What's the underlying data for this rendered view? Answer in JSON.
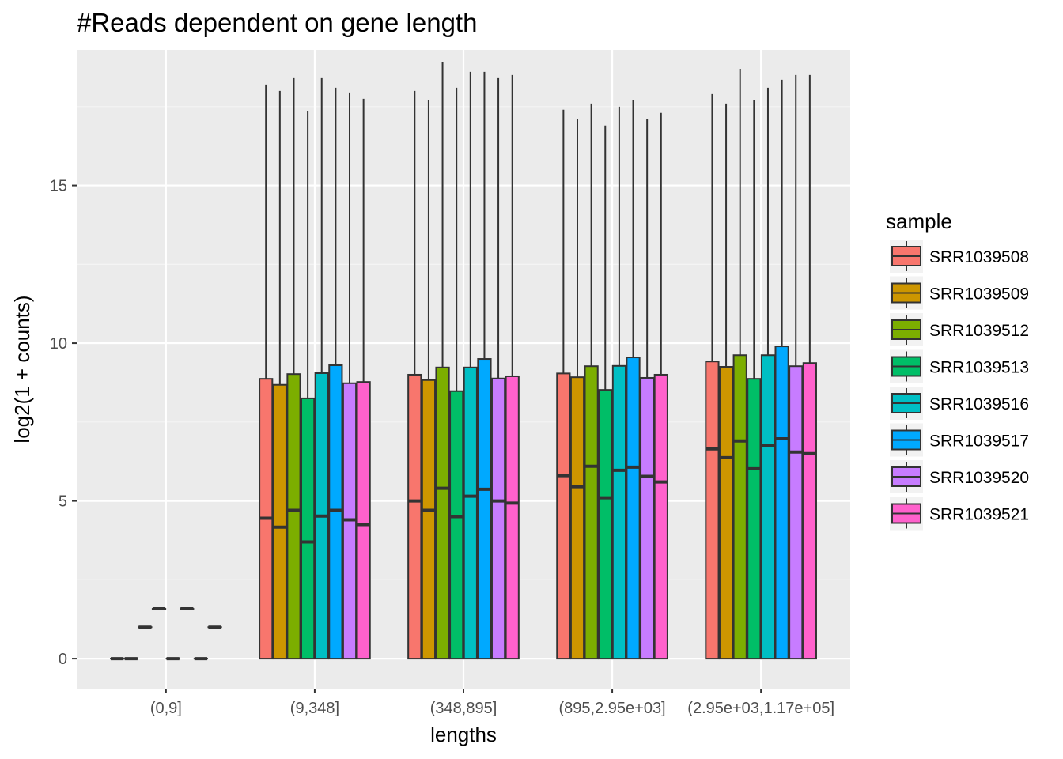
{
  "chart_data": {
    "type": "boxplot",
    "title": "#Reads dependent on gene length",
    "xlabel": "lengths",
    "ylabel": "log2(1 + counts)",
    "ylim": [
      -0.95,
      19.3
    ],
    "yticks": [
      0,
      5,
      10,
      15
    ],
    "grid": true,
    "legend": {
      "title": "sample",
      "position": "right"
    },
    "categories": [
      "(0,9]",
      "(9,348]",
      "(348,895]",
      "(895,2.95e+03]",
      "(2.95e+03,1.17e+05]"
    ],
    "series": [
      {
        "name": "SRR1039508",
        "color": "#F8766D",
        "boxes": [
          {
            "min": 0,
            "q1": 0,
            "median": 0,
            "q3": 0,
            "max": 0
          },
          {
            "min": 0,
            "q1": 0,
            "median": 4.45,
            "q3": 8.87,
            "max": 18.2
          },
          {
            "min": 0,
            "q1": 0,
            "median": 5.0,
            "q3": 9.0,
            "max": 18.0
          },
          {
            "min": 0,
            "q1": 0,
            "median": 5.8,
            "q3": 9.04,
            "max": 17.4
          },
          {
            "min": 0,
            "q1": 0,
            "median": 6.65,
            "q3": 9.42,
            "max": 17.9
          }
        ]
      },
      {
        "name": "SRR1039509",
        "color": "#CD9600",
        "boxes": [
          {
            "min": 0,
            "q1": 0,
            "median": 0,
            "q3": 0,
            "max": 0
          },
          {
            "min": 0,
            "q1": 0,
            "median": 4.17,
            "q3": 8.68,
            "max": 18.0
          },
          {
            "min": 0,
            "q1": 0,
            "median": 4.7,
            "q3": 8.83,
            "max": 17.7
          },
          {
            "min": 0,
            "q1": 0,
            "median": 5.45,
            "q3": 8.92,
            "max": 17.1
          },
          {
            "min": 0,
            "q1": 0,
            "median": 6.37,
            "q3": 9.25,
            "max": 17.6
          }
        ]
      },
      {
        "name": "SRR1039512",
        "color": "#7CAE00",
        "boxes": [
          {
            "min": 1,
            "q1": 1,
            "median": 1,
            "q3": 1,
            "max": 1
          },
          {
            "min": 0,
            "q1": 0,
            "median": 4.7,
            "q3": 9.02,
            "max": 18.4
          },
          {
            "min": 0,
            "q1": 0,
            "median": 5.4,
            "q3": 9.23,
            "max": 18.9
          },
          {
            "min": 0,
            "q1": 0,
            "median": 6.1,
            "q3": 9.27,
            "max": 17.6
          },
          {
            "min": 0,
            "q1": 0,
            "median": 6.9,
            "q3": 9.62,
            "max": 18.7
          }
        ]
      },
      {
        "name": "SRR1039513",
        "color": "#00BE67",
        "boxes": [
          {
            "min": 1.58,
            "q1": 1.58,
            "median": 1.58,
            "q3": 1.58,
            "max": 1.58
          },
          {
            "min": 0,
            "q1": 0,
            "median": 3.7,
            "q3": 8.25,
            "max": 17.35
          },
          {
            "min": 0,
            "q1": 0,
            "median": 4.5,
            "q3": 8.48,
            "max": 18.1
          },
          {
            "min": 0,
            "q1": 0,
            "median": 5.1,
            "q3": 8.52,
            "max": 16.9
          },
          {
            "min": 0,
            "q1": 0,
            "median": 6.02,
            "q3": 8.87,
            "max": 17.7
          }
        ]
      },
      {
        "name": "SRR1039516",
        "color": "#00BFC4",
        "boxes": [
          {
            "min": 0,
            "q1": 0,
            "median": 0,
            "q3": 0,
            "max": 0
          },
          {
            "min": 0,
            "q1": 0,
            "median": 4.52,
            "q3": 9.05,
            "max": 18.4
          },
          {
            "min": 0,
            "q1": 0,
            "median": 5.15,
            "q3": 9.23,
            "max": 18.6
          },
          {
            "min": 0,
            "q1": 0,
            "median": 5.97,
            "q3": 9.28,
            "max": 17.5
          },
          {
            "min": 0,
            "q1": 0,
            "median": 6.75,
            "q3": 9.62,
            "max": 18.1
          }
        ]
      },
      {
        "name": "SRR1039517",
        "color": "#00A9FF",
        "boxes": [
          {
            "min": 1.58,
            "q1": 1.58,
            "median": 1.58,
            "q3": 1.58,
            "max": 1.58
          },
          {
            "min": 0,
            "q1": 0,
            "median": 4.7,
            "q3": 9.3,
            "max": 18.1
          },
          {
            "min": 0,
            "q1": 0,
            "median": 5.37,
            "q3": 9.5,
            "max": 18.6
          },
          {
            "min": 0,
            "q1": 0,
            "median": 6.07,
            "q3": 9.55,
            "max": 17.7
          },
          {
            "min": 0,
            "q1": 0,
            "median": 6.97,
            "q3": 9.9,
            "max": 18.35
          }
        ]
      },
      {
        "name": "SRR1039520",
        "color": "#C77CFF",
        "boxes": [
          {
            "min": 0,
            "q1": 0,
            "median": 0,
            "q3": 0,
            "max": 0
          },
          {
            "min": 0,
            "q1": 0,
            "median": 4.4,
            "q3": 8.73,
            "max": 17.95
          },
          {
            "min": 0,
            "q1": 0,
            "median": 5.0,
            "q3": 8.88,
            "max": 18.4
          },
          {
            "min": 0,
            "q1": 0,
            "median": 5.78,
            "q3": 8.9,
            "max": 17.1
          },
          {
            "min": 0,
            "q1": 0,
            "median": 6.55,
            "q3": 9.27,
            "max": 18.5
          }
        ]
      },
      {
        "name": "SRR1039521",
        "color": "#FF61CC",
        "boxes": [
          {
            "min": 1,
            "q1": 1,
            "median": 1,
            "q3": 1,
            "max": 1
          },
          {
            "min": 0,
            "q1": 0,
            "median": 4.25,
            "q3": 8.77,
            "max": 17.75
          },
          {
            "min": 0,
            "q1": 0,
            "median": 4.93,
            "q3": 8.95,
            "max": 18.5
          },
          {
            "min": 0,
            "q1": 0,
            "median": 5.6,
            "q3": 9.0,
            "max": 17.3
          },
          {
            "min": 0,
            "q1": 0,
            "median": 6.5,
            "q3": 9.37,
            "max": 18.5
          }
        ]
      }
    ]
  }
}
